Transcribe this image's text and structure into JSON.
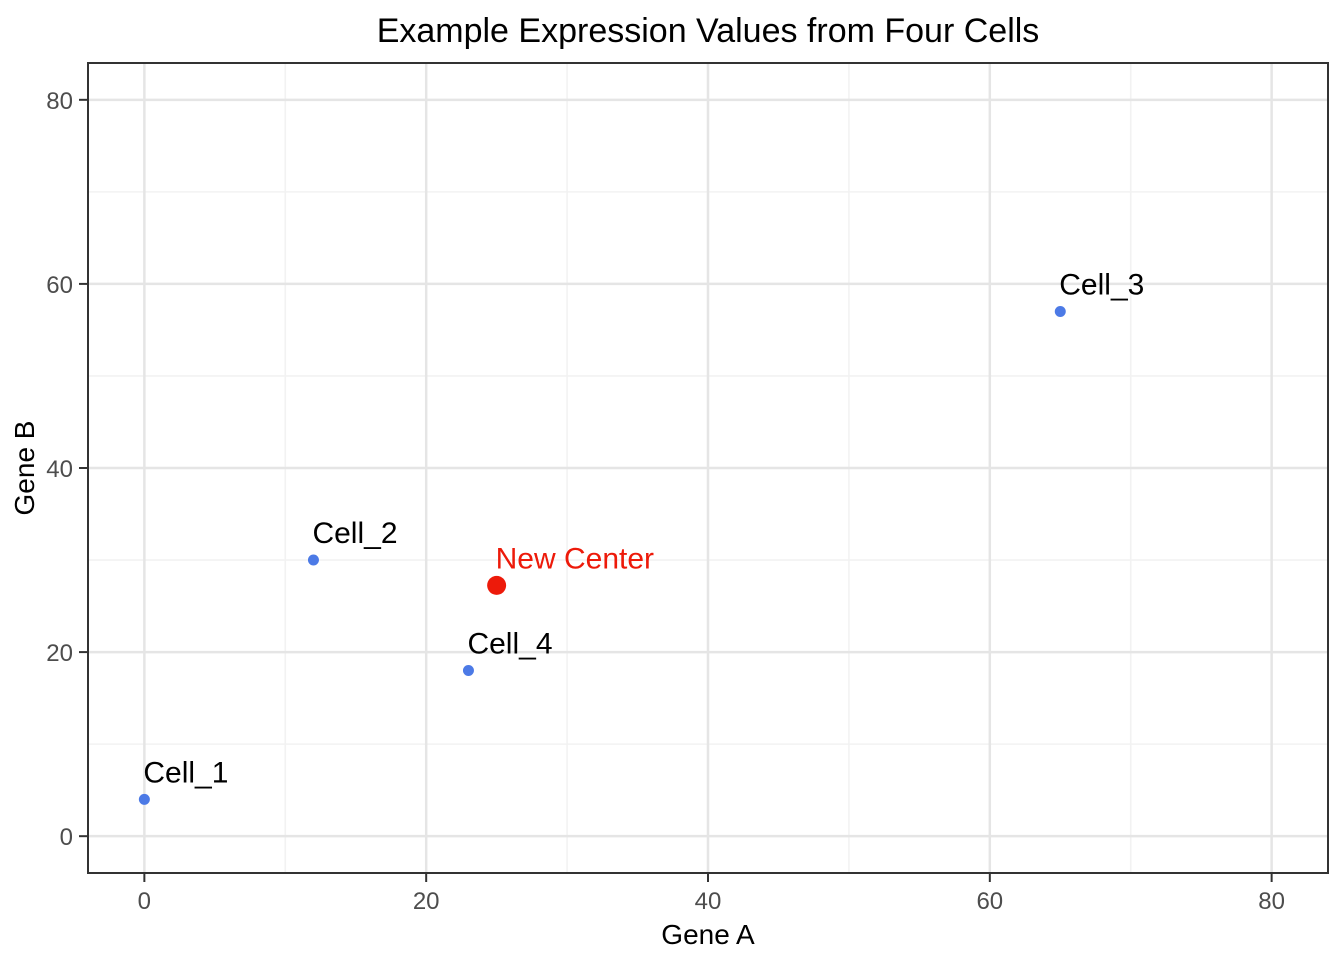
{
  "chart_data": {
    "type": "scatter",
    "title": "Example Expression Values from Four Cells",
    "xlabel": "Gene A",
    "ylabel": "Gene B",
    "x_domain": [
      -4,
      84
    ],
    "y_domain": [
      -4,
      84
    ],
    "x_ticks": [
      0,
      20,
      40,
      60,
      80
    ],
    "y_ticks": [
      0,
      20,
      40,
      60,
      80
    ],
    "x_minor_ticks": [
      10,
      30,
      50,
      70
    ],
    "y_minor_ticks": [
      10,
      30,
      50,
      70
    ],
    "grid": "on",
    "legend": "none",
    "points": [
      {
        "label": "Cell_1",
        "x": 0,
        "y": 4,
        "color": "#4c7ae6",
        "radius": 5.5,
        "label_color": "#000000"
      },
      {
        "label": "Cell_2",
        "x": 12,
        "y": 30,
        "color": "#4c7ae6",
        "radius": 5.5,
        "label_color": "#000000"
      },
      {
        "label": "Cell_3",
        "x": 65,
        "y": 57,
        "color": "#4c7ae6",
        "radius": 5.5,
        "label_color": "#000000"
      },
      {
        "label": "Cell_4",
        "x": 23,
        "y": 18,
        "color": "#4c7ae6",
        "radius": 5.5,
        "label_color": "#000000"
      },
      {
        "label": "New Center",
        "x": 25,
        "y": 27.25,
        "color": "#ed1a0a",
        "radius": 9.5,
        "label_color": "#ed1a0a"
      }
    ],
    "colors": {
      "point_blue": "#4c7ae6",
      "point_red": "#ed1a0a",
      "grid_major": "#e5e5e5",
      "grid_minor": "#f2f2f2",
      "panel_border": "#333333",
      "tick_text": "#4d4d4d"
    }
  }
}
